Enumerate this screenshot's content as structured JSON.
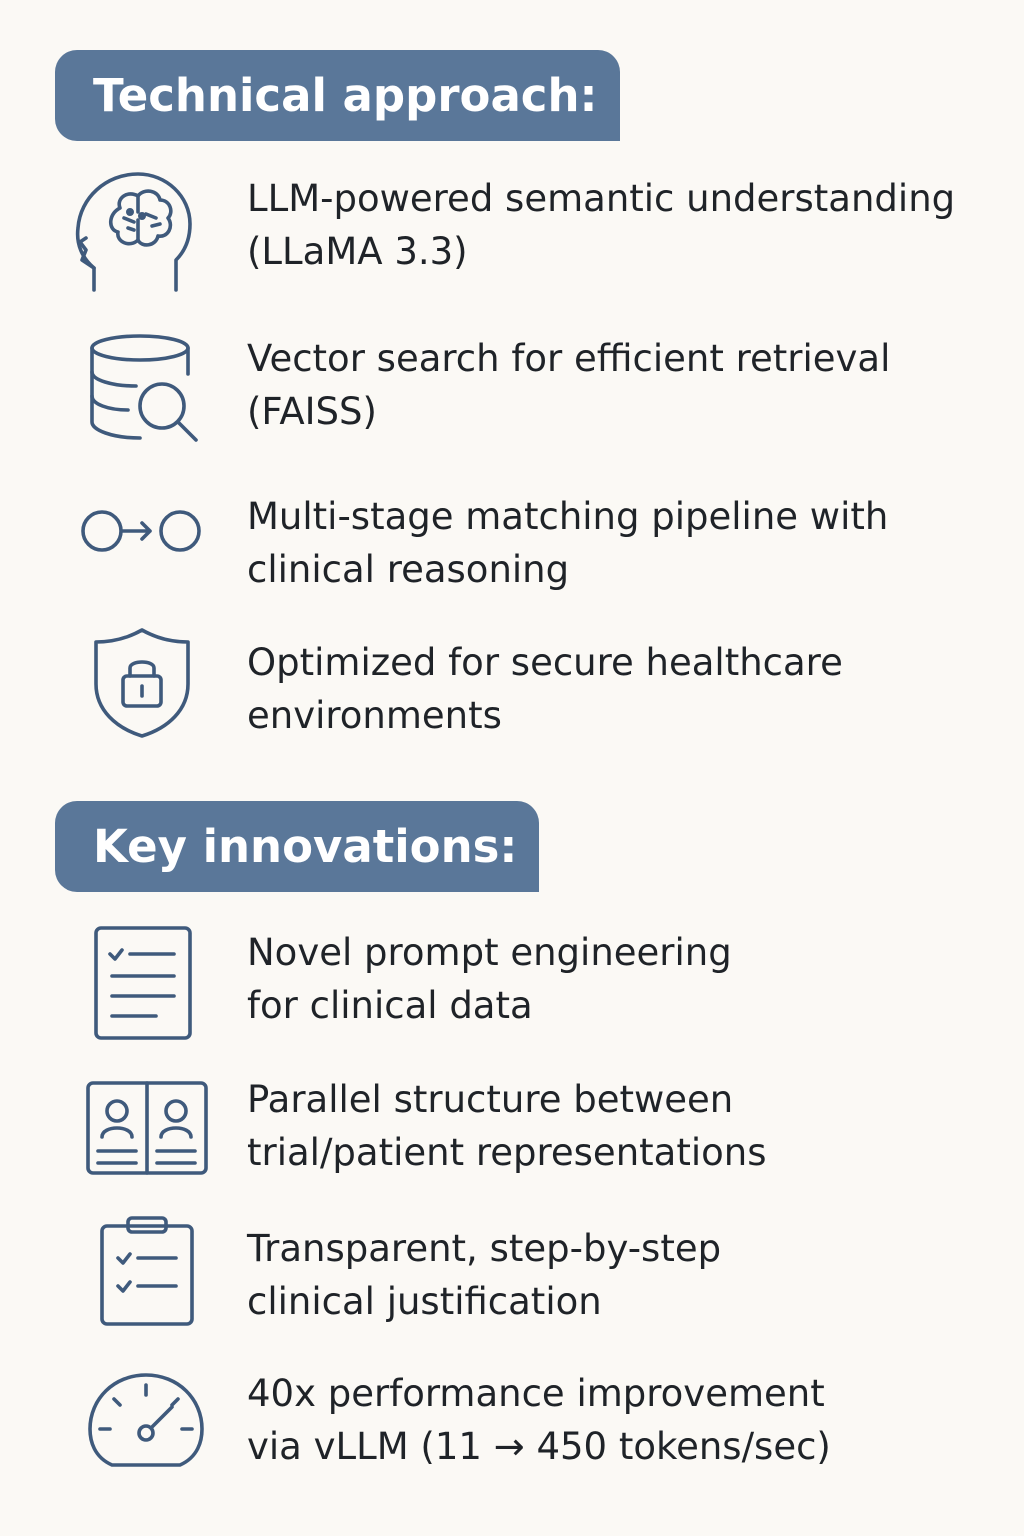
{
  "technical": {
    "title": "Technical approach:",
    "items": [
      {
        "icon": "brain-head-icon",
        "line1": "LLM-powered semantic understanding",
        "line2": "(LLaMA 3.3)"
      },
      {
        "icon": "database-search-icon",
        "line1": "Vector search for efficient retrieval",
        "line2": "(FAISS)"
      },
      {
        "icon": "pipeline-arrow-icon",
        "line1": "Multi-stage matching pipeline with",
        "line2": "clinical reasoning"
      },
      {
        "icon": "shield-lock-icon",
        "line1": "Optimized for secure healthcare",
        "line2": "environments"
      }
    ]
  },
  "innovations": {
    "title": "Key innovations:",
    "items": [
      {
        "icon": "document-checklist-icon",
        "line1": "Novel prompt engineering",
        "line2": "for clinical data"
      },
      {
        "icon": "parallel-profiles-icon",
        "line1": "Parallel structure between",
        "line2": "trial/patient representations"
      },
      {
        "icon": "clipboard-checklist-icon",
        "line1": "Transparent, step-by-step",
        "line2": "clinical justification"
      },
      {
        "icon": "speedometer-icon",
        "line1": "40x performance improvement",
        "line2": "via vLLM (11 → 450 tokens/sec)"
      }
    ]
  },
  "colors": {
    "background": "#fbf9f5",
    "header": "#5a7799",
    "icon": "#3f5a7c",
    "text": "#1f2328"
  }
}
